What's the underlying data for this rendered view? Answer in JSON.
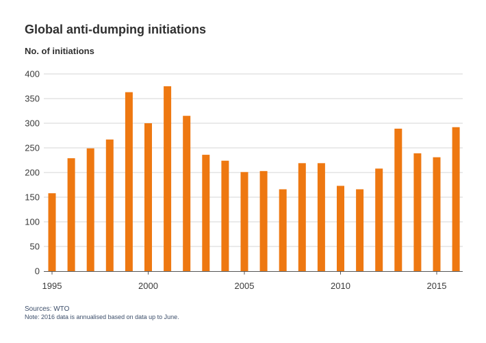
{
  "chart_data": {
    "type": "bar",
    "title": "Global anti-dumping initiations",
    "ylabel": "No. of initiations",
    "xlabel": "",
    "categories": [
      "1995",
      "1996",
      "1997",
      "1998",
      "1999",
      "2000",
      "2001",
      "2002",
      "2003",
      "2004",
      "2005",
      "2006",
      "2007",
      "2008",
      "2009",
      "2010",
      "2011",
      "2012",
      "2013",
      "2014",
      "2015",
      "2016"
    ],
    "values": [
      158,
      229,
      249,
      267,
      363,
      300,
      375,
      315,
      236,
      224,
      201,
      203,
      166,
      219,
      219,
      173,
      166,
      208,
      289,
      239,
      231,
      292
    ],
    "ylim": [
      0,
      400
    ],
    "yticks": [
      "0",
      "50",
      "100",
      "150",
      "200",
      "250",
      "300",
      "350",
      "400"
    ],
    "xticks": [
      {
        "year": "1995",
        "label": "1995"
      },
      {
        "year": "2000",
        "label": "2000"
      },
      {
        "year": "2005",
        "label": "2005"
      },
      {
        "year": "2010",
        "label": "2010"
      },
      {
        "year": "2015",
        "label": "2015"
      }
    ],
    "grid": true,
    "colors": {
      "bar": "#ee7811",
      "grid": "#d6d6d6",
      "axis": "#555555"
    }
  },
  "footer": {
    "source": "Sources: WTO",
    "note": "Note: 2016 data is annualised based on data up to June."
  }
}
